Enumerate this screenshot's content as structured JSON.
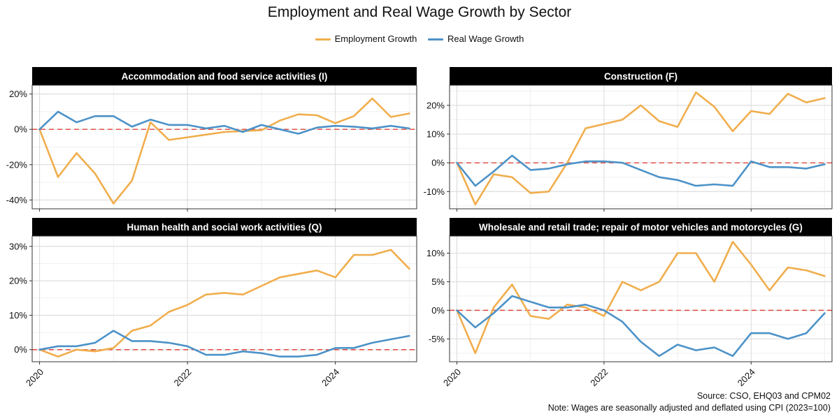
{
  "title": "Employment and Real Wage Growth by Sector",
  "footer": {
    "source": "Source: CSO, EHQ03 and CPM02",
    "note": "Note: Wages are seasonally adjusted and deflated using CPI (2023=100)"
  },
  "colors": {
    "employment": "#F0AE4D",
    "wage": "#4C92C8",
    "zero_line": "#E0453A",
    "strip_bg": "#000000",
    "strip_text": "#FFFFFF",
    "grid_major": "#DADADA",
    "grid_minor": "#F0F0F0"
  },
  "chart_data": {
    "type": "line",
    "legend": [
      "Employment Growth",
      "Real Wage Growth"
    ],
    "legend_position": "top",
    "grid": true,
    "zero_reference_line": "dashed red at 0%",
    "x_axis": {
      "ticks": [
        "2020",
        "2022",
        "2024"
      ],
      "range": [
        2019.9,
        2025.1
      ],
      "tick_values": [
        2020,
        2022,
        2024
      ]
    },
    "x": [
      2020.0,
      2020.25,
      2020.5,
      2020.75,
      2021.0,
      2021.25,
      2021.5,
      2021.75,
      2022.0,
      2022.25,
      2022.5,
      2022.75,
      2023.0,
      2023.25,
      2023.5,
      2023.75,
      2024.0,
      2024.25,
      2024.5,
      2024.75,
      2025.0
    ],
    "panels": [
      {
        "strip": "Accommodation and food service activities (I)",
        "ylim": [
          -45,
          25
        ],
        "yticks": [
          20,
          0,
          -20,
          -40
        ],
        "ytick_labels": [
          "20%",
          "0%",
          "-20%",
          "-40%"
        ],
        "series": [
          {
            "name": "Employment Growth",
            "values": [
              0,
              -27,
              -13.5,
              -25,
              -42,
              -29,
              4,
              -6,
              -4.5,
              -3,
              -1.5,
              -1,
              -0.5,
              5,
              8.5,
              8,
              3.5,
              7.5,
              17.5,
              7,
              9
            ]
          },
          {
            "name": "Real Wage Growth",
            "values": [
              0,
              10,
              4,
              7.5,
              7.5,
              1.5,
              5.5,
              2.5,
              2.5,
              0.5,
              2,
              -1.5,
              2.5,
              0,
              -2.5,
              1,
              2,
              1.5,
              0.5,
              2,
              0.5
            ]
          }
        ]
      },
      {
        "strip": "Construction (F)",
        "ylim": [
          -16,
          27
        ],
        "yticks": [
          20,
          10,
          0,
          -10
        ],
        "ytick_labels": [
          "20%",
          "10%",
          "0%",
          "-10%"
        ],
        "series": [
          {
            "name": "Employment Growth",
            "values": [
              0,
              -14.5,
              -4,
              -5,
              -10.5,
              -10,
              0,
              12,
              13.5,
              15,
              20,
              14.5,
              12.5,
              24.5,
              19.5,
              11,
              18,
              17,
              24,
              21,
              22.5
            ]
          },
          {
            "name": "Real Wage Growth",
            "values": [
              0,
              -8,
              -3,
              2.5,
              -2.5,
              -2,
              -0.5,
              0.5,
              0.5,
              0,
              -2.5,
              -5,
              -6,
              -8,
              -7.5,
              -8,
              0.5,
              -1.5,
              -1.5,
              -2,
              -0.5
            ]
          }
        ]
      },
      {
        "strip": "Human health and social work activities (Q)",
        "ylim": [
          -3.5,
          33
        ],
        "yticks": [
          30,
          20,
          10,
          0
        ],
        "ytick_labels": [
          "30%",
          "20%",
          "10%",
          "0%"
        ],
        "series": [
          {
            "name": "Employment Growth",
            "values": [
              0,
              -2,
              0,
              -0.5,
              0.5,
              5.5,
              7,
              11,
              13,
              16,
              16.5,
              16,
              18.5,
              21,
              22,
              23,
              21,
              27.5,
              27.5,
              29,
              23.5
            ]
          },
          {
            "name": "Real Wage Growth",
            "values": [
              0,
              1,
              1,
              2,
              5.5,
              2.5,
              2.5,
              2,
              1,
              -1.5,
              -1.5,
              -0.5,
              -1,
              -2,
              -2,
              -1.5,
              0.5,
              0.5,
              2,
              3,
              4
            ]
          }
        ]
      },
      {
        "strip": "Wholesale and retail trade; repair of motor vehicles and motorcycles (G)",
        "ylim": [
          -9,
          13
        ],
        "yticks": [
          10,
          5,
          0,
          -5
        ],
        "ytick_labels": [
          "10%",
          "5%",
          "0%",
          "-5%"
        ],
        "series": [
          {
            "name": "Employment Growth",
            "values": [
              0,
              -7.5,
              0.5,
              4.5,
              -1,
              -1.5,
              1,
              0.5,
              -1,
              5,
              3.5,
              5,
              10,
              10,
              5,
              12,
              8,
              3.5,
              7.5,
              7,
              6
            ]
          },
          {
            "name": "Real Wage Growth",
            "values": [
              0,
              -3,
              -0.5,
              2.5,
              1.5,
              0.5,
              0.5,
              1,
              0,
              -2,
              -5.5,
              -8,
              -6,
              -7,
              -6.5,
              -8,
              -4,
              -4,
              -5,
              -4,
              -0.5
            ]
          }
        ]
      }
    ]
  }
}
